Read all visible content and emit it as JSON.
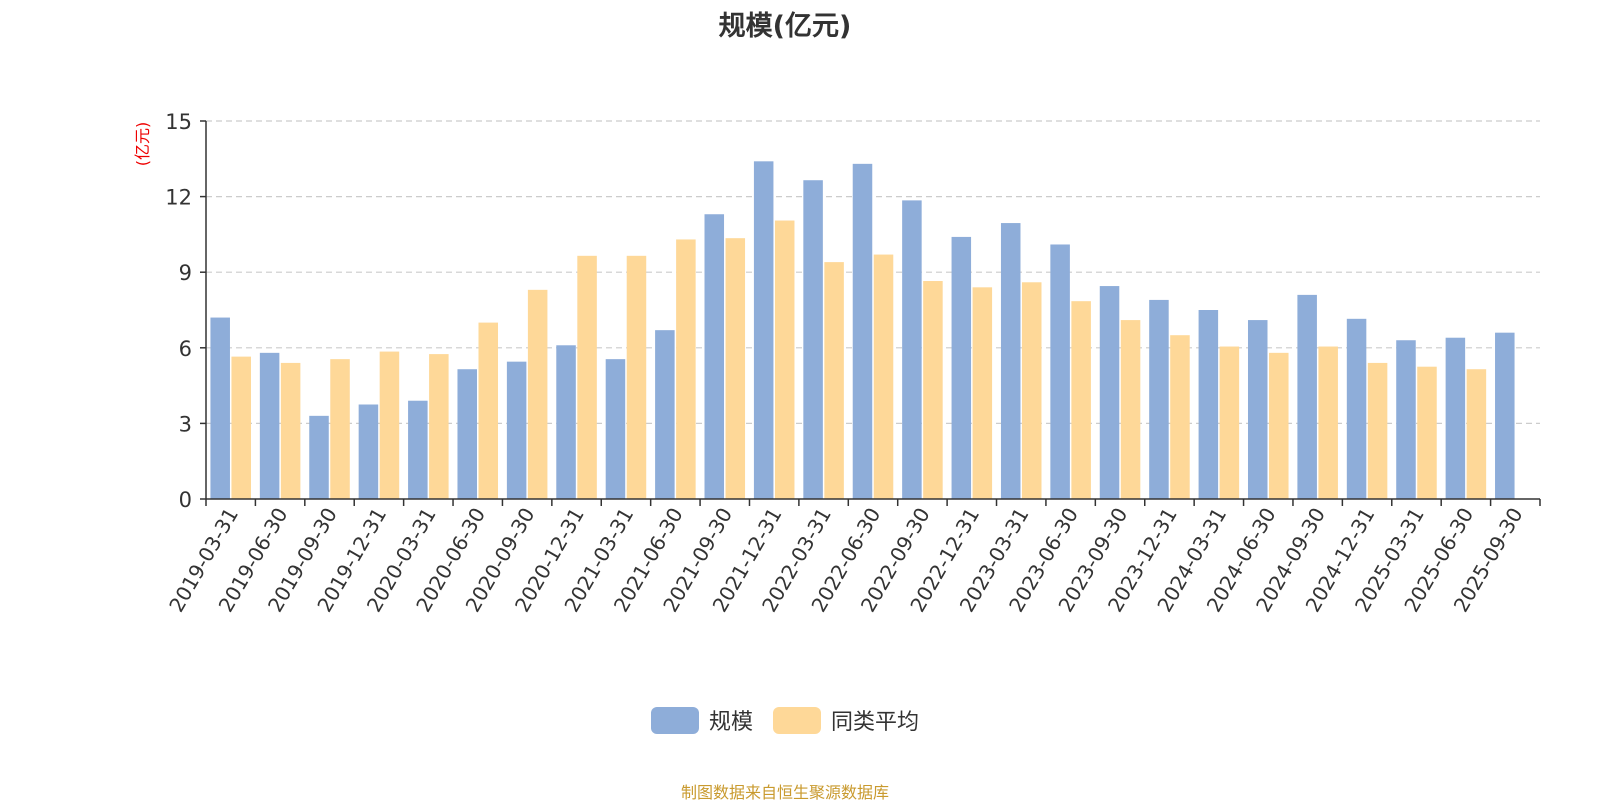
{
  "source_note": "制图数据来自恒生聚源数据库",
  "colors": {
    "series_a": "#8eadd9",
    "series_b": "#fed898",
    "grid": "#cccccc",
    "axis": "#333333",
    "ylabel": "#ee0000"
  },
  "chart_data": {
    "type": "bar",
    "title": "规模(亿元)",
    "ylabel": "(亿元)",
    "xlabel": "",
    "ylim": [
      0,
      15
    ],
    "yticks": [
      0,
      3,
      6,
      9,
      12,
      15
    ],
    "grid": true,
    "legend_position": "bottom",
    "categories": [
      "2019-03-31",
      "2019-06-30",
      "2019-09-30",
      "2019-12-31",
      "2020-03-31",
      "2020-06-30",
      "2020-09-30",
      "2020-12-31",
      "2021-03-31",
      "2021-06-30",
      "2021-09-30",
      "2021-12-31",
      "2022-03-31",
      "2022-06-30",
      "2022-09-30",
      "2022-12-31",
      "2023-03-31",
      "2023-06-30",
      "2023-09-30",
      "2023-12-31",
      "2024-03-31",
      "2024-06-30",
      "2024-09-30",
      "2024-12-31",
      "2025-03-31",
      "2025-06-30",
      "2025-09-30"
    ],
    "series": [
      {
        "name": "规模",
        "color": "#8eadd9",
        "values": [
          7.2,
          5.8,
          3.3,
          3.75,
          3.9,
          5.15,
          5.45,
          6.1,
          5.55,
          6.7,
          11.3,
          13.4,
          12.65,
          13.3,
          11.85,
          10.4,
          10.95,
          10.1,
          8.45,
          7.9,
          7.5,
          7.1,
          8.1,
          7.15,
          6.3,
          6.4,
          6.6
        ]
      },
      {
        "name": "同类平均",
        "color": "#fed898",
        "values": [
          5.65,
          5.4,
          5.55,
          5.85,
          5.75,
          7.0,
          8.3,
          9.65,
          9.65,
          10.3,
          10.35,
          11.05,
          9.4,
          9.7,
          8.65,
          8.4,
          8.6,
          7.85,
          7.1,
          6.5,
          6.05,
          5.8,
          6.05,
          5.4,
          5.25,
          5.15,
          null
        ]
      }
    ]
  }
}
